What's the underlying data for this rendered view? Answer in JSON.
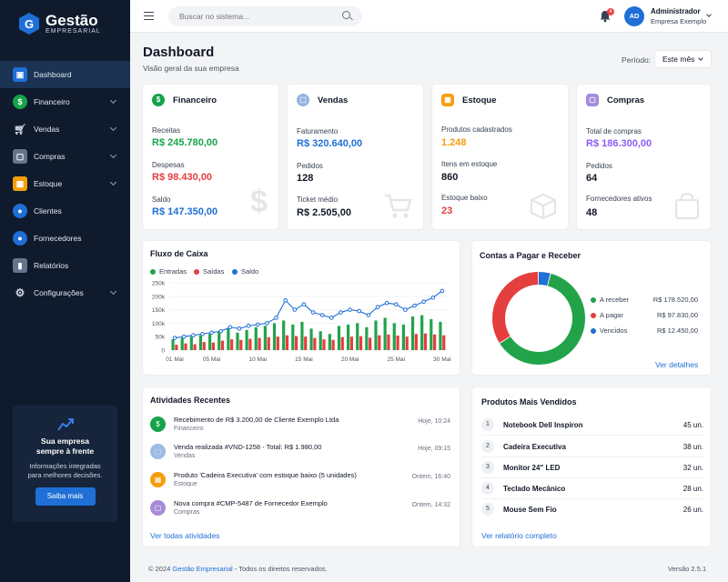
{
  "brand": {
    "name": "Gestão",
    "subtitle": "EMPRESARIAL"
  },
  "sidebar": {
    "items": [
      {
        "label": "Dashboard",
        "icon": "dashboard-icon",
        "color": "#1f6fd6",
        "active": true
      },
      {
        "label": "Financeiro",
        "icon": "dollar-icon",
        "color": "#16a34a",
        "chevron": true
      },
      {
        "label": "Vendas",
        "icon": "cart-icon",
        "color": "#64748b",
        "chevron": true
      },
      {
        "label": "Compras",
        "icon": "bag-icon",
        "color": "#64748b",
        "chevron": true
      },
      {
        "label": "Estoque",
        "icon": "box-icon",
        "color": "#f59e0b",
        "chevron": true
      },
      {
        "label": "Clientes",
        "icon": "user-icon",
        "color": "#1f6fd6"
      },
      {
        "label": "Fornecedores",
        "icon": "supplier-icon",
        "color": "#1f6fd6"
      },
      {
        "label": "Relatórios",
        "icon": "report-icon",
        "color": "#64748b"
      },
      {
        "label": "Configurações",
        "icon": "gear-icon",
        "color": "#64748b",
        "chevron": true
      }
    ],
    "promo": {
      "title_line1": "Sua empresa",
      "title_line2": "sempre à frente",
      "desc_line1": "Informações integradas",
      "desc_line2": "para melhores decisões.",
      "button": "Saiba mais"
    }
  },
  "topbar": {
    "search_placeholder": "Buscar no sistema...",
    "notif_count": "4",
    "avatar_initials": "AD",
    "user_name": "Administrador",
    "user_company": "Empresa Exemplo"
  },
  "header": {
    "title": "Dashboard",
    "subtitle": "Visão geral da sua empresa",
    "period_label": "Período:",
    "period_value": "Este mês"
  },
  "kpis": {
    "financeiro": {
      "title": "Financeiro",
      "l1": "Receitas",
      "v1": "R$ 245.780,00",
      "l2": "Despesas",
      "v2": "R$ 98.430,00",
      "l3": "Saldo",
      "v3": "R$ 147.350,00"
    },
    "vendas": {
      "title": "Vendas",
      "l1": "Faturamento",
      "v1": "R$ 320.640,00",
      "l2": "Pedidos",
      "v2": "128",
      "l3": "Ticket médio",
      "v3": "R$ 2.505,00"
    },
    "estoque": {
      "title": "Estoque",
      "l1": "Produtos cadastrados",
      "v1": "1.248",
      "l2": "Itens em estoque",
      "v2": "860",
      "l3": "Estoque baixo",
      "v3": "23"
    },
    "compras": {
      "title": "Compras",
      "l1": "Total de compras",
      "v1": "R$ 186.300,00",
      "l2": "Pedidos",
      "v2": "64",
      "l3": "Fornecedores ativos",
      "v3": "48"
    }
  },
  "cashflow": {
    "title": "Fluxo de Caixa",
    "legend": [
      "Entradas",
      "Saídas",
      "Saldo"
    ]
  },
  "chart_data": [
    {
      "type": "bar",
      "title": "Fluxo de Caixa",
      "x": [
        "01 Mai",
        "02 Mai",
        "03 Mai",
        "04 Mai",
        "05 Mai",
        "06 Mai",
        "07 Mai",
        "08 Mai",
        "09 Mai",
        "10 Mai",
        "11 Mai",
        "12 Mai",
        "13 Mai",
        "14 Mai",
        "15 Mai",
        "16 Mai",
        "17 Mai",
        "18 Mai",
        "19 Mai",
        "20 Mai",
        "21 Mai",
        "22 Mai",
        "23 Mai",
        "24 Mai",
        "25 Mai",
        "26 Mai",
        "27 Mai",
        "28 Mai",
        "29 Mai",
        "30 Mai"
      ],
      "tick_labels": [
        "01 Mai",
        "05 Mai",
        "10 Mai",
        "15 Mai",
        "20 Mai",
        "25 Mai",
        "30 Mai"
      ],
      "ylim": [
        0,
        250000
      ],
      "y_ticks": [
        "0",
        "50k",
        "100k",
        "150k",
        "200k",
        "250k"
      ],
      "series": [
        {
          "name": "Entradas",
          "type": "bar",
          "color": "#22a34a",
          "values": [
            40000,
            45000,
            50000,
            55000,
            60000,
            70000,
            80000,
            65000,
            75000,
            85000,
            90000,
            100000,
            110000,
            95000,
            105000,
            80000,
            70000,
            60000,
            90000,
            95000,
            100000,
            85000,
            110000,
            120000,
            100000,
            95000,
            125000,
            130000,
            115000,
            105000
          ]
        },
        {
          "name": "Saídas",
          "type": "bar",
          "color": "#e53e3e",
          "values": [
            20000,
            25000,
            22000,
            30000,
            28000,
            35000,
            40000,
            38000,
            42000,
            45000,
            48000,
            50000,
            55000,
            52000,
            50000,
            45000,
            40000,
            38000,
            48000,
            50000,
            52000,
            46000,
            55000,
            58000,
            54000,
            50000,
            60000,
            62000,
            58000,
            55000
          ]
        },
        {
          "name": "Saldo",
          "type": "line",
          "color": "#1f6fd6",
          "values": [
            45000,
            50000,
            55000,
            60000,
            65000,
            70000,
            85000,
            80000,
            90000,
            95000,
            100000,
            120000,
            185000,
            150000,
            170000,
            140000,
            130000,
            120000,
            140000,
            150000,
            145000,
            130000,
            160000,
            175000,
            170000,
            150000,
            165000,
            180000,
            195000,
            220000
          ]
        }
      ]
    },
    {
      "type": "pie",
      "title": "Contas a Pagar e Receber",
      "categories": [
        "A receber",
        "A pagar",
        "Vencidos"
      ],
      "values": [
        178520,
        97830,
        12450
      ],
      "colors": [
        "#22a34a",
        "#e53e3e",
        "#1f6fd6"
      ]
    }
  ],
  "accounts": {
    "title": "Contas a Pagar e Receber",
    "rows": [
      {
        "label": "A receber",
        "value": "R$ 178.520,00"
      },
      {
        "label": "A pagar",
        "value": "R$ 97.830,00"
      },
      {
        "label": "Vencidos",
        "value": "R$ 12.450,00"
      }
    ],
    "link": "Ver detalhes"
  },
  "activities": {
    "title": "Atividades Recentes",
    "items": [
      {
        "text": "Recebimento de R$ 3.200,00 de Cliente Exemplo Ltda",
        "sub": "Financeiro",
        "time": "Hoje, 10:24",
        "icon": "dollar-icon",
        "color": "#16a34a"
      },
      {
        "text": "Venda realizada #VND-1258 - Total: R$ 1.980,00",
        "sub": "Vendas",
        "time": "Hoje, 09:15",
        "icon": "cart-icon",
        "color": "#7aa5d8"
      },
      {
        "text": "Produto 'Cadeira Executiva' com estoque baixo (5 unidades)",
        "sub": "Estoque",
        "time": "Ontem, 16:40",
        "icon": "box-icon",
        "color": "#f59e0b"
      },
      {
        "text": "Nova compra #CMP-5487 de Fornecedor Exemplo",
        "sub": "Compras",
        "time": "Ontem, 14:32",
        "icon": "bag-icon",
        "color": "#a78bda"
      }
    ],
    "link": "Ver todas atividades"
  },
  "products": {
    "title": "Produtos Mais Vendidos",
    "items": [
      {
        "rank": "1",
        "name": "Notebook Dell Inspiron",
        "qty": "45 un."
      },
      {
        "rank": "2",
        "name": "Cadeira Executiva",
        "qty": "38 un."
      },
      {
        "rank": "3",
        "name": "Monitor 24\" LED",
        "qty": "32 un."
      },
      {
        "rank": "4",
        "name": "Teclado Mecânico",
        "qty": "28 un."
      },
      {
        "rank": "5",
        "name": "Mouse Sem Fio",
        "qty": "26 un."
      }
    ],
    "link": "Ver relatório completo"
  },
  "footer": {
    "copy_prefix": "© 2024",
    "copy_brand": "Gestão Empresarial",
    "copy_suffix": "- Todos os direitos reservados.",
    "version": "Versão 2.5.1"
  }
}
